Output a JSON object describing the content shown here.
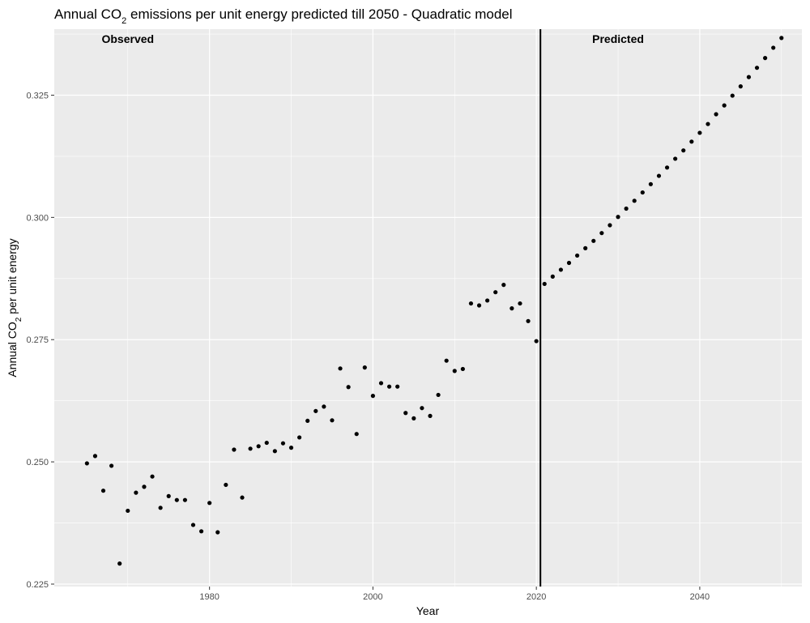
{
  "chart_data": {
    "type": "scatter",
    "title_main": "Annual CO",
    "title_sub": "2",
    "title_rest": " emissions per unit energy predicted till 2050 - Quadratic model",
    "xlabel": "Year",
    "ylabel_main": "Annual CO",
    "ylabel_sub": "2",
    "ylabel_rest": " per unit energy",
    "xlim": [
      1961,
      2052.5
    ],
    "ylim": [
      0.2245,
      0.3385
    ],
    "x_ticks": [
      1980,
      2000,
      2020,
      2040
    ],
    "y_ticks": [
      0.225,
      0.25,
      0.275,
      0.3,
      0.325
    ],
    "x_tick_labels": [
      "1980",
      "2000",
      "2020",
      "2040"
    ],
    "y_tick_labels": [
      "0.225",
      "0.250",
      "0.275",
      "0.300",
      "0.325"
    ],
    "divider_x": 2020.5,
    "annotations": [
      {
        "label": "Observed",
        "x": 1970,
        "y": 0.3365
      },
      {
        "label": "Predicted",
        "x": 2030,
        "y": 0.3365
      }
    ],
    "colors": {
      "panel": "#ebebeb",
      "grid": "#ffffff",
      "point": "#000000",
      "divider": "#000000"
    },
    "points": [
      [
        1965,
        0.2497
      ],
      [
        1966,
        0.2512
      ],
      [
        1967,
        0.2441
      ],
      [
        1968,
        0.2492
      ],
      [
        1969,
        0.2292
      ],
      [
        1970,
        0.24
      ],
      [
        1971,
        0.2437
      ],
      [
        1972,
        0.2449
      ],
      [
        1973,
        0.247
      ],
      [
        1974,
        0.2406
      ],
      [
        1975,
        0.243
      ],
      [
        1976,
        0.2422
      ],
      [
        1977,
        0.2422
      ],
      [
        1978,
        0.2371
      ],
      [
        1979,
        0.2358
      ],
      [
        1980,
        0.2416
      ],
      [
        1981,
        0.2356
      ],
      [
        1982,
        0.2453
      ],
      [
        1983,
        0.2525
      ],
      [
        1984,
        0.2427
      ],
      [
        1985,
        0.2527
      ],
      [
        1986,
        0.2532
      ],
      [
        1987,
        0.2539
      ],
      [
        1988,
        0.2522
      ],
      [
        1989,
        0.2538
      ],
      [
        1990,
        0.2529
      ],
      [
        1991,
        0.255
      ],
      [
        1992,
        0.2584
      ],
      [
        1993,
        0.2604
      ],
      [
        1994,
        0.2613
      ],
      [
        1995,
        0.2585
      ],
      [
        1996,
        0.2691
      ],
      [
        1997,
        0.2653
      ],
      [
        1998,
        0.2557
      ],
      [
        1999,
        0.2693
      ],
      [
        2000,
        0.2635
      ],
      [
        2001,
        0.2661
      ],
      [
        2002,
        0.2654
      ],
      [
        2003,
        0.2654
      ],
      [
        2004,
        0.26
      ],
      [
        2005,
        0.2589
      ],
      [
        2006,
        0.261
      ],
      [
        2007,
        0.2594
      ],
      [
        2008,
        0.2637
      ],
      [
        2009,
        0.2707
      ],
      [
        2010,
        0.2686
      ],
      [
        2011,
        0.269
      ],
      [
        2012,
        0.2824
      ],
      [
        2013,
        0.282
      ],
      [
        2014,
        0.283
      ],
      [
        2015,
        0.2847
      ],
      [
        2016,
        0.2862
      ],
      [
        2017,
        0.2814
      ],
      [
        2018,
        0.2824
      ],
      [
        2019,
        0.2788
      ],
      [
        2020,
        0.2747
      ],
      [
        2021,
        0.2864
      ],
      [
        2022,
        0.2879
      ],
      [
        2023,
        0.2893
      ],
      [
        2024,
        0.2907
      ],
      [
        2025,
        0.2922
      ],
      [
        2026,
        0.2937
      ],
      [
        2027,
        0.2952
      ],
      [
        2028,
        0.2968
      ],
      [
        2029,
        0.2984
      ],
      [
        2030,
        0.3001
      ],
      [
        2031,
        0.3018
      ],
      [
        2032,
        0.3034
      ],
      [
        2033,
        0.3051
      ],
      [
        2034,
        0.3068
      ],
      [
        2035,
        0.3085
      ],
      [
        2036,
        0.3102
      ],
      [
        2037,
        0.312
      ],
      [
        2038,
        0.3137
      ],
      [
        2039,
        0.3155
      ],
      [
        2040,
        0.3173
      ],
      [
        2041,
        0.3191
      ],
      [
        2042,
        0.3211
      ],
      [
        2043,
        0.3229
      ],
      [
        2044,
        0.3249
      ],
      [
        2045,
        0.3268
      ],
      [
        2046,
        0.3287
      ],
      [
        2047,
        0.3306
      ],
      [
        2048,
        0.3326
      ],
      [
        2049,
        0.3347
      ],
      [
        2050,
        0.3367
      ]
    ]
  }
}
